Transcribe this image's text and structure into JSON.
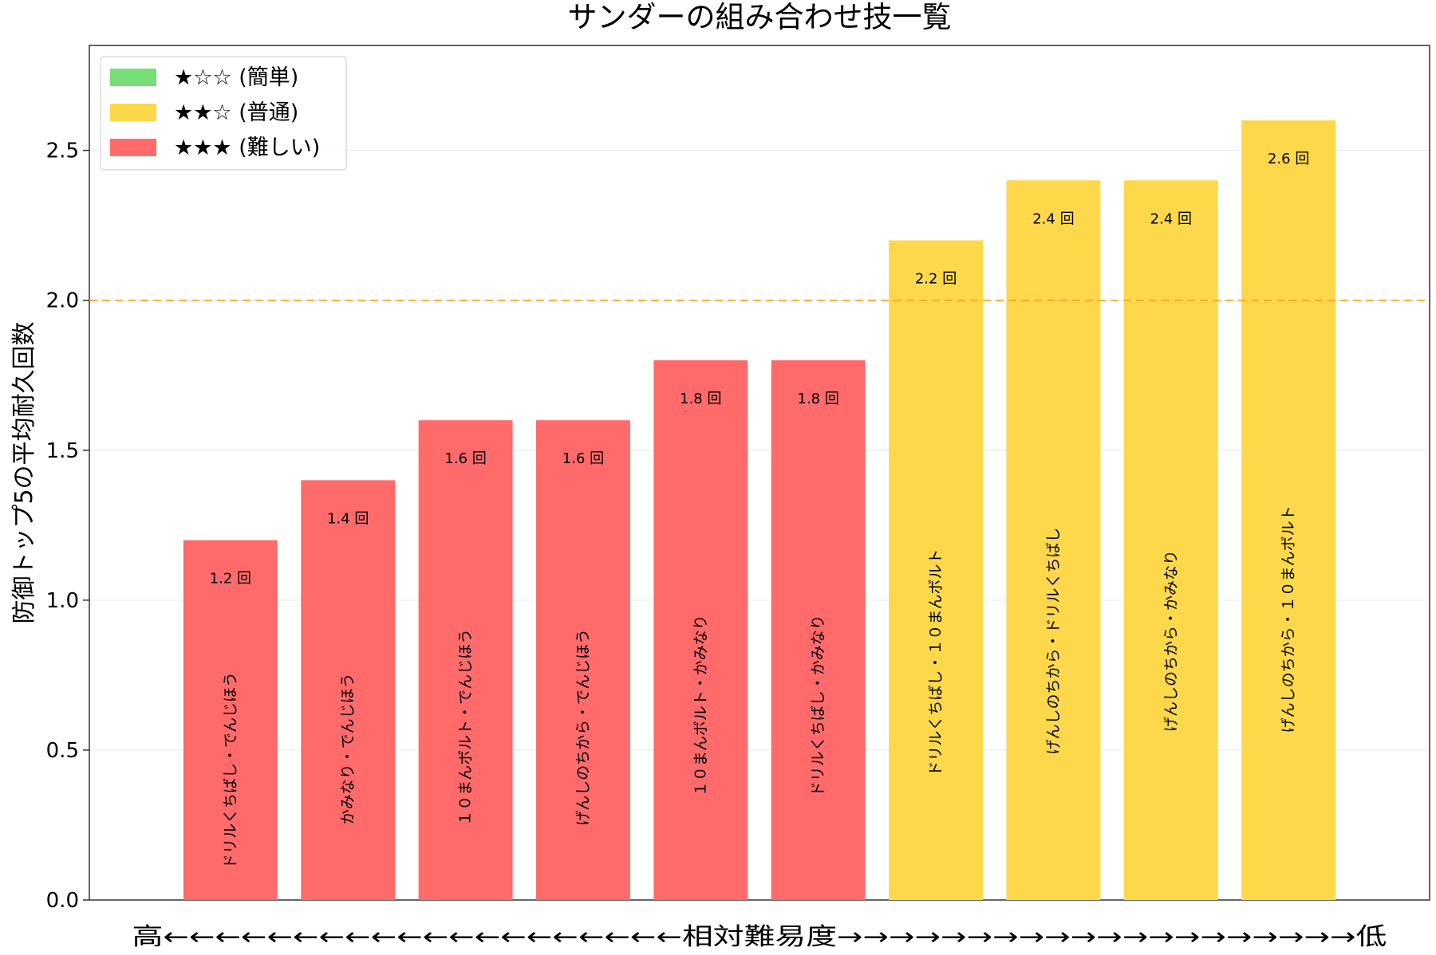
{
  "chart_data": {
    "type": "bar",
    "title": "サンダーの組み合わせ技一覧",
    "ylabel": "防御トップ5の平均耐久回数",
    "xlabel": "高←←←←←←←←←←←←←←←←←←←←相対難易度→→→→→→→→→→→→→→→→→→→→低",
    "ylim": [
      0,
      2.85
    ],
    "yticks": [
      "0.0",
      "0.5",
      "1.0",
      "1.5",
      "2.0",
      "2.5"
    ],
    "ytick_values": [
      0,
      0.5,
      1.0,
      1.5,
      2.0,
      2.5
    ],
    "grid": "horizontal",
    "reference_line": {
      "y": 2.0,
      "color": "#f5a623",
      "style": "dashed"
    },
    "legend_position": "top-left",
    "legend": [
      {
        "label": "★☆☆ (簡単)",
        "color": "#77dd77"
      },
      {
        "label": "★★☆ (普通)",
        "color": "#fdd84a"
      },
      {
        "label": "★★★ (難しい)",
        "color": "#ff6b6b"
      }
    ],
    "value_suffix": " 回",
    "bars": [
      {
        "name": "ドリルくちばし・でんじほう",
        "value": 1.2,
        "value_label": "1.2 回",
        "difficulty": "hard"
      },
      {
        "name": "かみなり・でんじほう",
        "value": 1.4,
        "value_label": "1.4 回",
        "difficulty": "hard"
      },
      {
        "name": "１０まんボルト・でんじほう",
        "value": 1.6,
        "value_label": "1.6 回",
        "difficulty": "hard"
      },
      {
        "name": "げんしのちから・でんじほう",
        "value": 1.6,
        "value_label": "1.6 回",
        "difficulty": "hard"
      },
      {
        "name": "１０まんボルト・かみなり",
        "value": 1.8,
        "value_label": "1.8 回",
        "difficulty": "hard"
      },
      {
        "name": "ドリルくちばし・かみなり",
        "value": 1.8,
        "value_label": "1.8 回",
        "difficulty": "hard"
      },
      {
        "name": "ドリルくちばし・１０まんボルト",
        "value": 2.2,
        "value_label": "2.2 回",
        "difficulty": "normal"
      },
      {
        "name": "げんしのちから・ドリルくちばし",
        "value": 2.4,
        "value_label": "2.4 回",
        "difficulty": "normal"
      },
      {
        "name": "げんしのちから・かみなり",
        "value": 2.4,
        "value_label": "2.4 回",
        "difficulty": "normal"
      },
      {
        "name": "げんしのちから・１０まんボルト",
        "value": 2.6,
        "value_label": "2.6 回",
        "difficulty": "normal"
      }
    ],
    "difficulty_colors": {
      "easy": "#77dd77",
      "normal": "#fdd84a",
      "hard": "#ff6b6b"
    }
  }
}
